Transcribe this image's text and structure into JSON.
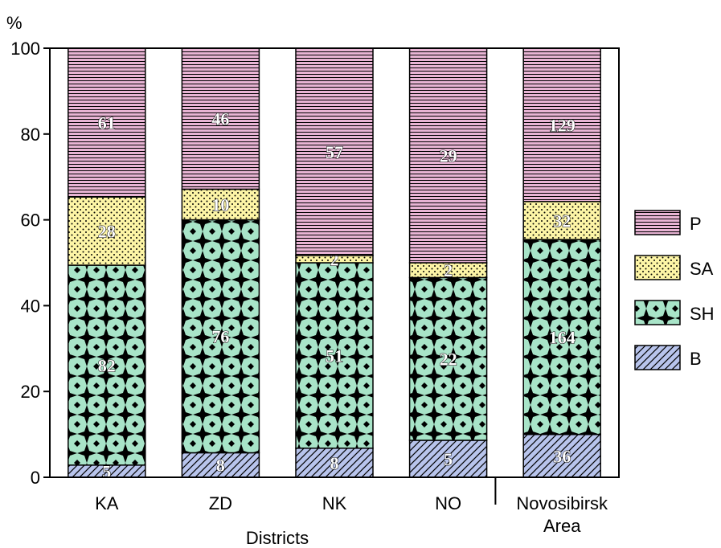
{
  "chart_data": {
    "type": "bar",
    "stacked": true,
    "normalized": "percent",
    "categories": [
      "KA",
      "ZD",
      "NK",
      "NO",
      "Novosibirsk Area"
    ],
    "category_lines": [
      [
        "KA"
      ],
      [
        "ZD"
      ],
      [
        "NK"
      ],
      [
        "NO"
      ],
      [
        "Novosibirsk",
        "Area"
      ]
    ],
    "series": [
      {
        "name": "B",
        "color": "#b8c4ec",
        "pattern": "diagonal-hatch",
        "values": [
          5,
          8,
          8,
          5,
          36
        ]
      },
      {
        "name": "SH",
        "color": "#a8e4c8",
        "pattern": "diamond-weave",
        "values": [
          82,
          76,
          51,
          22,
          164
        ]
      },
      {
        "name": "SA",
        "color": "#fdf5a6",
        "pattern": "dots",
        "values": [
          28,
          10,
          2,
          2,
          32
        ]
      },
      {
        "name": "P",
        "color": "#e8b4d4",
        "pattern": "horizontal-lines",
        "values": [
          61,
          46,
          57,
          29,
          129
        ]
      }
    ],
    "legend_order": [
      "P",
      "SA",
      "SH",
      "B"
    ],
    "legend_position": "right",
    "xlabel": "Districts",
    "ylabel": "%",
    "ylim": [
      0,
      100
    ],
    "yticks": [
      0,
      20,
      40,
      60,
      80,
      100
    ],
    "grid": false
  }
}
